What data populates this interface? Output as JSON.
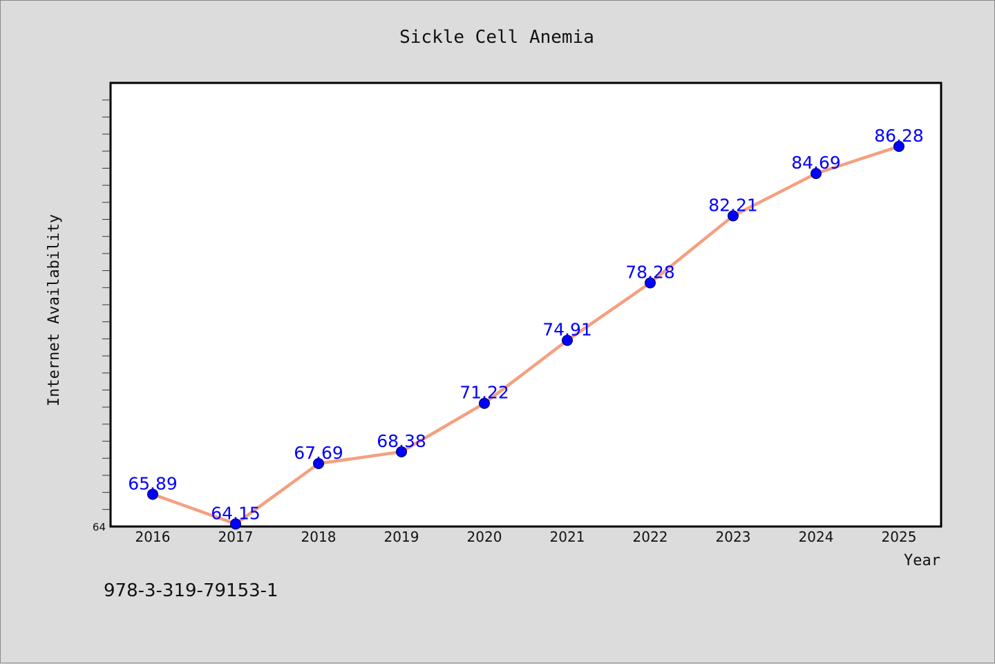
{
  "footer": {
    "text": "978-3-319-79153-1"
  },
  "colors": {
    "background": "#dcdcdc",
    "plot_area": "#ffffff",
    "line": "#f4a07f",
    "marker": "#0000ff",
    "data_label": "#0000ff"
  },
  "chart_data": {
    "type": "line",
    "title": "Sickle Cell Anemia",
    "xlabel": "Year",
    "ylabel": "Internet Availability",
    "categories": [
      "2016",
      "2017",
      "2018",
      "2019",
      "2020",
      "2021",
      "2022",
      "2023",
      "2024",
      "2025"
    ],
    "series": [
      {
        "values": [
          65.89,
          64.15,
          67.69,
          68.38,
          71.22,
          74.91,
          78.28,
          82.21,
          84.69,
          86.28
        ],
        "data_labels": [
          "65.89",
          "64.15",
          "67.69",
          "68.38",
          "71.22",
          "74.91",
          "78.28",
          "82.21",
          "84.69",
          "86.28"
        ]
      }
    ],
    "ylim": [
      64,
      90
    ],
    "ytick_labels": [
      "64"
    ],
    "grid": false,
    "legend": "none"
  }
}
